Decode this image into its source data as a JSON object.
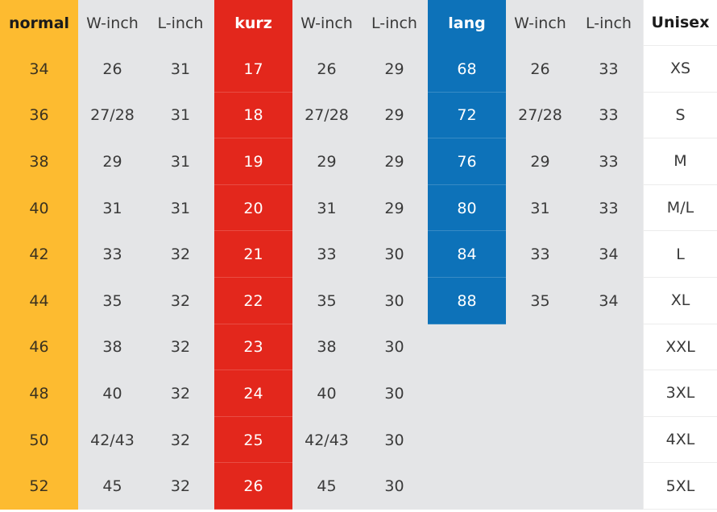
{
  "header": {
    "normal": "normal",
    "w_inch_1": "W-inch",
    "l_inch_1": "L-inch",
    "kurz": "kurz",
    "w_inch_2": "W-inch",
    "l_inch_2": "L-inch",
    "lang": "lang",
    "w_inch_3": "W-inch",
    "l_inch_3": "L-inch",
    "unisex": "Unisex"
  },
  "rows": [
    {
      "normal": "34",
      "w1": "26",
      "l1": "31",
      "kurz": "17",
      "w2": "26",
      "l2": "29",
      "lang": "68",
      "w3": "26",
      "l3": "33",
      "unisex": "XS"
    },
    {
      "normal": "36",
      "w1": "27/28",
      "l1": "31",
      "kurz": "18",
      "w2": "27/28",
      "l2": "29",
      "lang": "72",
      "w3": "27/28",
      "l3": "33",
      "unisex": "S"
    },
    {
      "normal": "38",
      "w1": "29",
      "l1": "31",
      "kurz": "19",
      "w2": "29",
      "l2": "29",
      "lang": "76",
      "w3": "29",
      "l3": "33",
      "unisex": "M"
    },
    {
      "normal": "40",
      "w1": "31",
      "l1": "31",
      "kurz": "20",
      "w2": "31",
      "l2": "29",
      "lang": "80",
      "w3": "31",
      "l3": "33",
      "unisex": "M/L"
    },
    {
      "normal": "42",
      "w1": "33",
      "l1": "32",
      "kurz": "21",
      "w2": "33",
      "l2": "30",
      "lang": "84",
      "w3": "33",
      "l3": "34",
      "unisex": "L"
    },
    {
      "normal": "44",
      "w1": "35",
      "l1": "32",
      "kurz": "22",
      "w2": "35",
      "l2": "30",
      "lang": "88",
      "w3": "35",
      "l3": "34",
      "unisex": "XL"
    },
    {
      "normal": "46",
      "w1": "38",
      "l1": "32",
      "kurz": "23",
      "w2": "38",
      "l2": "30",
      "lang": "",
      "w3": "",
      "l3": "",
      "unisex": "XXL"
    },
    {
      "normal": "48",
      "w1": "40",
      "l1": "32",
      "kurz": "24",
      "w2": "40",
      "l2": "30",
      "lang": "",
      "w3": "",
      "l3": "",
      "unisex": "3XL"
    },
    {
      "normal": "50",
      "w1": "42/43",
      "l1": "32",
      "kurz": "25",
      "w2": "42/43",
      "l2": "30",
      "lang": "",
      "w3": "",
      "l3": "",
      "unisex": "4XL"
    },
    {
      "normal": "52",
      "w1": "45",
      "l1": "32",
      "kurz": "26",
      "w2": "45",
      "l2": "30",
      "lang": "",
      "w3": "",
      "l3": "",
      "unisex": "5XL"
    }
  ],
  "colors": {
    "normal": "#fdbb30",
    "kurz": "#e3271c",
    "lang": "#0d72b9",
    "gray": "#e4e5e7",
    "white": "#ffffff"
  }
}
